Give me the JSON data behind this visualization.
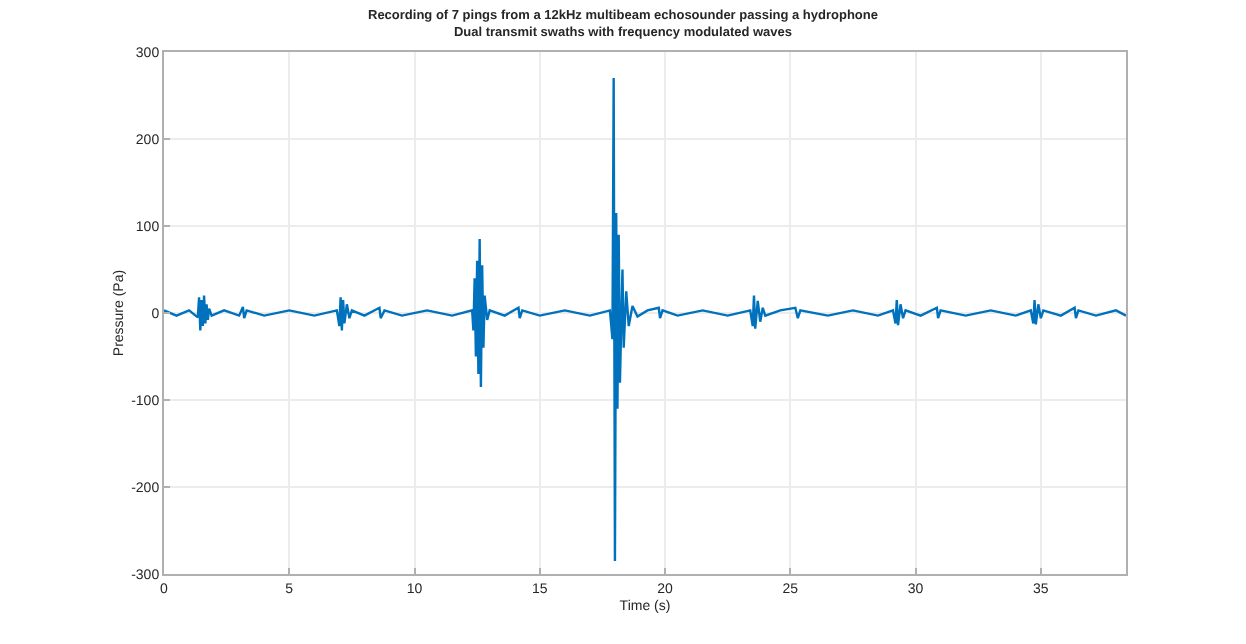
{
  "chart_data": {
    "type": "line",
    "title": "Recording of 7 pings from a 12kHz multibeam echosounder passing a hydrophone",
    "subtitle": "Dual transmit swaths with frequency modulated waves",
    "xlabel": "Time (s)",
    "ylabel": "Pressure (Pa)",
    "x": [
      0,
      0.5,
      1.0,
      1.35,
      1.4,
      1.45,
      1.5,
      1.55,
      1.6,
      1.65,
      1.7,
      1.75,
      1.8,
      1.9,
      2.4,
      3.0,
      3.15,
      3.2,
      3.3,
      4.0,
      5.0,
      6.0,
      6.9,
      7.0,
      7.05,
      7.1,
      7.15,
      7.2,
      7.3,
      7.4,
      7.5,
      8.0,
      8.6,
      8.65,
      8.8,
      9.5,
      10.5,
      11.5,
      12.3,
      12.35,
      12.4,
      12.45,
      12.5,
      12.55,
      12.6,
      12.65,
      12.7,
      12.75,
      12.8,
      12.9,
      13.0,
      13.6,
      14.15,
      14.2,
      14.3,
      15.0,
      16.0,
      17.0,
      17.8,
      17.9,
      17.95,
      18.0,
      18.05,
      18.1,
      18.15,
      18.2,
      18.3,
      18.35,
      18.45,
      18.55,
      18.7,
      18.9,
      19.3,
      19.75,
      19.8,
      19.9,
      20.5,
      21.5,
      22.5,
      23.4,
      23.5,
      23.55,
      23.6,
      23.7,
      23.8,
      23.9,
      24.0,
      24.6,
      25.2,
      25.3,
      25.4,
      26.5,
      27.5,
      28.5,
      29.1,
      29.2,
      29.25,
      29.3,
      29.4,
      29.5,
      29.6,
      30.2,
      30.85,
      30.9,
      31.0,
      32.0,
      33.0,
      34.0,
      34.6,
      34.7,
      34.75,
      34.8,
      34.9,
      35.0,
      35.1,
      35.8,
      36.35,
      36.4,
      36.5,
      37.2,
      38.0,
      38.4
    ],
    "series": [
      {
        "color": "#0072bd",
        "values": [
          3,
          -3,
          3,
          -5,
          18,
          -20,
          15,
          -15,
          20,
          -12,
          10,
          -8,
          5,
          -3,
          3,
          -3,
          7,
          -6,
          3,
          -3,
          3,
          -3,
          3,
          -15,
          18,
          -20,
          15,
          -12,
          10,
          -6,
          3,
          -3,
          6,
          -6,
          3,
          -3,
          3,
          -3,
          3,
          -20,
          40,
          -50,
          60,
          -70,
          85,
          -85,
          55,
          -40,
          20,
          -8,
          3,
          -3,
          6,
          -6,
          3,
          -3,
          3,
          -3,
          3,
          -30,
          270,
          -285,
          115,
          -110,
          90,
          -80,
          50,
          -40,
          25,
          -15,
          8,
          -4,
          3,
          6,
          -6,
          3,
          -3,
          3,
          -3,
          3,
          -15,
          20,
          -18,
          14,
          -10,
          6,
          -3,
          3,
          6,
          -6,
          3,
          -3,
          3,
          -3,
          3,
          -12,
          15,
          -14,
          10,
          -6,
          3,
          -3,
          6,
          -6,
          3,
          -3,
          3,
          -3,
          3,
          -12,
          15,
          -13,
          10,
          -6,
          3,
          -3,
          6,
          -6,
          3,
          -3,
          3,
          -3
        ]
      }
    ],
    "xlim": [
      0,
      38.4
    ],
    "xticks": [
      0,
      5,
      10,
      15,
      20,
      25,
      30,
      35
    ],
    "ylim": [
      -300,
      300
    ],
    "yticks": [
      -300,
      -200,
      -100,
      0,
      100,
      200,
      300
    ],
    "grid": true,
    "line_style": "solid",
    "marker": "none"
  }
}
